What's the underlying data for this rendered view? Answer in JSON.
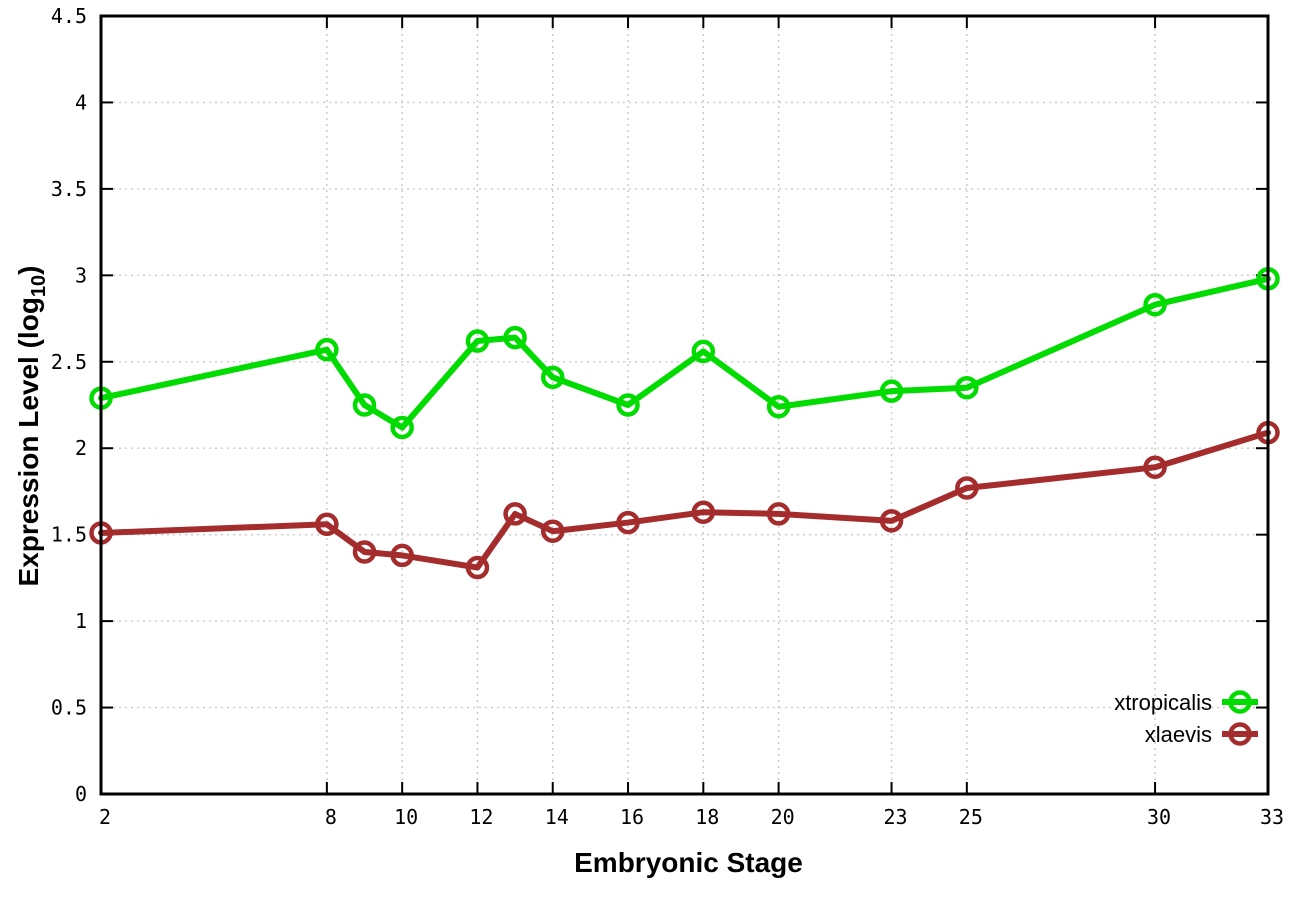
{
  "chart_data": {
    "type": "line",
    "title": "",
    "xlabel": "Embryonic Stage",
    "ylabel": "Expression Level (log10)",
    "ylabel_parts": {
      "main": "Expression Level (log",
      "sub": "10",
      "end": ")"
    },
    "x": [
      2,
      8,
      9,
      10,
      12,
      13,
      14,
      16,
      18,
      20,
      23,
      25,
      30,
      33
    ],
    "series": [
      {
        "name": "xtropicalis",
        "color": "#00db00",
        "values": [
          2.29,
          2.57,
          2.25,
          2.12,
          2.62,
          2.64,
          2.41,
          2.25,
          2.56,
          2.24,
          2.33,
          2.35,
          2.83,
          2.98
        ]
      },
      {
        "name": "xlaevis",
        "color": "#a42c2c",
        "values": [
          1.51,
          1.56,
          1.4,
          1.38,
          1.31,
          1.62,
          1.52,
          1.57,
          1.63,
          1.62,
          1.58,
          1.77,
          1.89,
          2.09
        ]
      }
    ],
    "xlim": [
      2,
      33
    ],
    "ylim": [
      0,
      4.5
    ],
    "xticks": [
      2,
      8,
      10,
      12,
      14,
      16,
      18,
      20,
      23,
      25,
      30,
      33
    ],
    "xtick_labels": [
      "2",
      "8",
      "10",
      "12",
      "14",
      "16",
      "18",
      "20",
      "23",
      "25",
      "30",
      "33"
    ],
    "yticks": [
      0,
      0.5,
      1,
      1.5,
      2,
      2.5,
      3,
      3.5,
      4,
      4.5
    ],
    "ytick_labels": [
      "0",
      "0.5",
      "1",
      "1.5",
      "2",
      "2.5",
      "3",
      "3.5",
      "4",
      "4.5"
    ],
    "grid": true,
    "grid_color": "#c9c9c9",
    "axis_color": "#000000",
    "background": "#ffffff",
    "marker": "open-circle",
    "legend_position": "bottom-right",
    "legend": [
      "xtropicalis",
      "xlaevis"
    ]
  }
}
